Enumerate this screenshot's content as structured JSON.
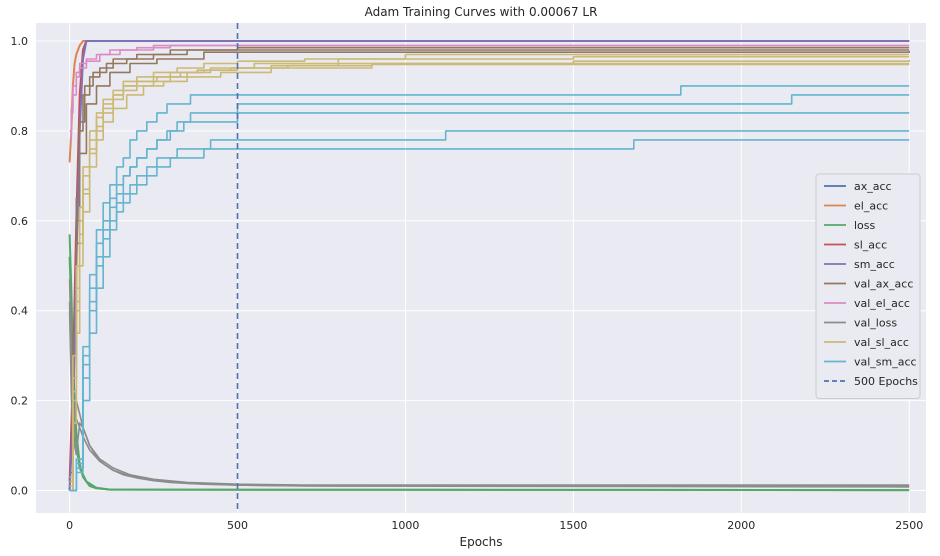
{
  "chart_data": {
    "type": "line",
    "title": "Adam Training Curves with 0.00067 LR",
    "xlabel": "Epochs",
    "ylabel": "",
    "xlim": [
      -100,
      2550
    ],
    "ylim": [
      -0.05,
      1.04
    ],
    "xticks": [
      0,
      500,
      1000,
      1500,
      2000,
      2500
    ],
    "yticks": [
      0.0,
      0.2,
      0.4,
      0.6,
      0.8,
      1.0
    ],
    "xtick_labels": [
      "0",
      "500",
      "1000",
      "1500",
      "2000",
      "2500"
    ],
    "ytick_labels": [
      "0.0",
      "0.2",
      "0.4",
      "0.6",
      "0.8",
      "1.0"
    ],
    "grid": true,
    "background": "#eaeaf2",
    "legend_position": "center right",
    "series": [
      {
        "name": "ax_acc",
        "color": "#4c72b0",
        "runs": [
          {
            "x": [
              0,
              10,
              20,
              30,
              40,
              50,
              2500
            ],
            "y": [
              0.0,
              0.2,
              0.55,
              0.85,
              0.98,
              1.0,
              1.0
            ]
          }
        ]
      },
      {
        "name": "el_acc",
        "color": "#dd8452",
        "runs": [
          {
            "x": [
              0,
              5,
              10,
              15,
              20,
              30,
              40,
              2500
            ],
            "y": [
              0.73,
              0.8,
              0.9,
              0.95,
              0.97,
              0.99,
              1.0,
              1.0
            ]
          }
        ]
      },
      {
        "name": "loss",
        "color": "#55a868",
        "runs": [
          {
            "x": [
              0,
              5,
              10,
              15,
              20,
              30,
              40,
              60,
              80,
              120,
              2500
            ],
            "y": [
              0.57,
              0.45,
              0.3,
              0.2,
              0.13,
              0.06,
              0.03,
              0.01,
              0.005,
              0.002,
              0.001
            ]
          },
          {
            "x": [
              0,
              5,
              10,
              20,
              30,
              50,
              80,
              120,
              2500
            ],
            "y": [
              0.52,
              0.4,
              0.25,
              0.1,
              0.05,
              0.02,
              0.006,
              0.002,
              0.001
            ]
          }
        ]
      },
      {
        "name": "sl_acc",
        "color": "#c44e52",
        "runs": [
          {
            "x": [
              0,
              10,
              20,
              30,
              40,
              50,
              2500
            ],
            "y": [
              0.02,
              0.25,
              0.6,
              0.88,
              0.98,
              1.0,
              1.0
            ]
          }
        ]
      },
      {
        "name": "sm_acc",
        "color": "#8172b3",
        "runs": [
          {
            "x": [
              0,
              10,
              20,
              30,
              40,
              50,
              2500
            ],
            "y": [
              0.0,
              0.15,
              0.5,
              0.8,
              0.96,
              1.0,
              1.0
            ]
          }
        ]
      },
      {
        "name": "val_ax_acc",
        "color": "#937860",
        "runs": [
          {
            "x": [
              0,
              10,
              20,
              30,
              40,
              60,
              90,
              130,
              200,
              300,
              500,
              2500
            ],
            "y": [
              0.02,
              0.3,
              0.6,
              0.8,
              0.88,
              0.92,
              0.94,
              0.96,
              0.97,
              0.98,
              0.985,
              0.985
            ]
          },
          {
            "x": [
              0,
              10,
              20,
              30,
              50,
              80,
              120,
              180,
              260,
              400,
              2500
            ],
            "y": [
              0.0,
              0.25,
              0.55,
              0.75,
              0.86,
              0.9,
              0.93,
              0.95,
              0.96,
              0.975,
              0.978
            ]
          },
          {
            "x": [
              0,
              10,
              20,
              30,
              45,
              70,
              110,
              170,
              250,
              350,
              2500
            ],
            "y": [
              0.04,
              0.35,
              0.65,
              0.82,
              0.9,
              0.93,
              0.95,
              0.96,
              0.97,
              0.98,
              0.98
            ]
          }
        ]
      },
      {
        "name": "val_el_acc",
        "color": "#da8bc3",
        "runs": [
          {
            "x": [
              0,
              5,
              10,
              20,
              30,
              50,
              80,
              120,
              200,
              300,
              2500
            ],
            "y": [
              0.8,
              0.85,
              0.9,
              0.93,
              0.95,
              0.96,
              0.97,
              0.98,
              0.985,
              0.99,
              0.99
            ]
          },
          {
            "x": [
              0,
              5,
              10,
              20,
              30,
              50,
              90,
              150,
              250,
              2500
            ],
            "y": [
              0.78,
              0.84,
              0.88,
              0.92,
              0.94,
              0.955,
              0.97,
              0.98,
              0.99,
              0.99
            ]
          }
        ]
      },
      {
        "name": "val_loss",
        "color": "#8c8c8c",
        "runs": [
          {
            "x": [
              0,
              5,
              10,
              15,
              20,
              30,
              40,
              50,
              60,
              80,
              100,
              130,
              160,
              200,
              250,
              300,
              400,
              500,
              600,
              800,
              2500
            ],
            "y": [
              0.47,
              0.3,
              0.18,
              0.1,
              0.08,
              0.15,
              0.14,
              0.12,
              0.1,
              0.075,
              0.06,
              0.045,
              0.035,
              0.028,
              0.022,
              0.018,
              0.014,
              0.012,
              0.011,
              0.01,
              0.01
            ]
          },
          {
            "x": [
              0,
              5,
              10,
              20,
              30,
              40,
              60,
              90,
              130,
              180,
              250,
              350,
              500,
              700,
              2500
            ],
            "y": [
              0.42,
              0.25,
              0.15,
              0.2,
              0.17,
              0.14,
              0.1,
              0.07,
              0.05,
              0.035,
              0.025,
              0.018,
              0.014,
              0.012,
              0.012
            ]
          },
          {
            "x": [
              0,
              5,
              10,
              20,
              30,
              40,
              60,
              90,
              130,
              180,
              250,
              350,
              500,
              700,
              2500
            ],
            "y": [
              0.4,
              0.22,
              0.12,
              0.16,
              0.14,
              0.12,
              0.09,
              0.065,
              0.045,
              0.032,
              0.022,
              0.016,
              0.012,
              0.01,
              0.008
            ]
          }
        ]
      },
      {
        "name": "val_sl_acc",
        "color": "#ccb974",
        "runs": [
          {
            "x": [
              0,
              10,
              20,
              30,
              40,
              60,
              80,
              100,
              130,
              160,
              200,
              250,
              300,
              350,
              400,
              500,
              600,
              800,
              1200,
              2500
            ],
            "y": [
              0.0,
              0.2,
              0.4,
              0.55,
              0.66,
              0.75,
              0.8,
              0.84,
              0.87,
              0.89,
              0.9,
              0.91,
              0.92,
              0.93,
              0.935,
              0.94,
              0.945,
              0.95,
              0.95,
              0.95
            ]
          },
          {
            "x": [
              0,
              10,
              20,
              30,
              40,
              60,
              80,
              100,
              130,
              160,
              200,
              260,
              330,
              420,
              550,
              800,
              1500,
              2500
            ],
            "y": [
              0.02,
              0.25,
              0.45,
              0.6,
              0.7,
              0.78,
              0.83,
              0.86,
              0.88,
              0.9,
              0.91,
              0.92,
              0.93,
              0.94,
              0.95,
              0.96,
              0.965,
              0.965
            ]
          },
          {
            "x": [
              0,
              10,
              20,
              30,
              40,
              60,
              80,
              100,
              130,
              170,
              220,
              280,
              350,
              450,
              600,
              900,
              1500,
              2500
            ],
            "y": [
              0.0,
              0.15,
              0.35,
              0.5,
              0.62,
              0.72,
              0.78,
              0.82,
              0.85,
              0.88,
              0.9,
              0.91,
              0.92,
              0.93,
              0.94,
              0.95,
              0.955,
              0.958
            ]
          },
          {
            "x": [
              0,
              10,
              20,
              30,
              40,
              60,
              80,
              100,
              130,
              160,
              200,
              250,
              320,
              400,
              500,
              700,
              1000,
              2500
            ],
            "y": [
              0.03,
              0.3,
              0.5,
              0.63,
              0.72,
              0.8,
              0.84,
              0.87,
              0.89,
              0.91,
              0.92,
              0.93,
              0.94,
              0.95,
              0.955,
              0.96,
              0.97,
              0.97
            ]
          },
          {
            "x": [
              0,
              10,
              20,
              30,
              40,
              60,
              80,
              100,
              130,
              160,
              200,
              250,
              300,
              380,
              480,
              650,
              900,
              2500
            ],
            "y": [
              0.01,
              0.22,
              0.42,
              0.57,
              0.67,
              0.76,
              0.81,
              0.85,
              0.88,
              0.9,
              0.91,
              0.92,
              0.93,
              0.935,
              0.94,
              0.945,
              0.948,
              0.948
            ]
          }
        ]
      },
      {
        "name": "val_sm_acc",
        "color": "#64b5cd",
        "runs": [
          {
            "x": [
              0,
              20,
              40,
              60,
              80,
              100,
              120,
              140,
              160,
              180,
              200,
              230,
              260,
              290,
              320,
              360,
              420,
              500,
              700,
              1000,
              1120,
              1500,
              2500
            ],
            "y": [
              0.0,
              0.05,
              0.25,
              0.4,
              0.5,
              0.56,
              0.6,
              0.64,
              0.66,
              0.68,
              0.7,
              0.72,
              0.74,
              0.74,
              0.76,
              0.76,
              0.78,
              0.78,
              0.78,
              0.78,
              0.8,
              0.8,
              0.8
            ]
          },
          {
            "x": [
              0,
              20,
              40,
              60,
              80,
              100,
              120,
              140,
              160,
              180,
              200,
              230,
              260,
              300,
              350,
              400,
              500,
              600,
              800,
              1680,
              2500
            ],
            "y": [
              0.0,
              0.04,
              0.2,
              0.35,
              0.45,
              0.52,
              0.58,
              0.62,
              0.64,
              0.66,
              0.68,
              0.7,
              0.72,
              0.74,
              0.74,
              0.76,
              0.76,
              0.76,
              0.76,
              0.78,
              0.78
            ]
          },
          {
            "x": [
              0,
              20,
              40,
              60,
              80,
              100,
              120,
              140,
              160,
              180,
              200,
              230,
              260,
              300,
              340,
              400,
              500,
              700,
              1000,
              2500
            ],
            "y": [
              0.0,
              0.06,
              0.3,
              0.45,
              0.55,
              0.6,
              0.65,
              0.68,
              0.7,
              0.72,
              0.74,
              0.76,
              0.78,
              0.8,
              0.82,
              0.82,
              0.84,
              0.84,
              0.84,
              0.84
            ]
          },
          {
            "x": [
              0,
              20,
              40,
              60,
              80,
              100,
              120,
              140,
              160,
              180,
              200,
              230,
              260,
              290,
              320,
              360,
              420,
              500,
              700,
              1000,
              2150,
              2500
            ],
            "y": [
              0.0,
              0.05,
              0.28,
              0.42,
              0.52,
              0.58,
              0.63,
              0.66,
              0.7,
              0.72,
              0.74,
              0.76,
              0.78,
              0.8,
              0.82,
              0.84,
              0.84,
              0.86,
              0.86,
              0.86,
              0.88,
              0.88
            ]
          },
          {
            "x": [
              0,
              20,
              40,
              60,
              80,
              100,
              120,
              140,
              160,
              180,
              200,
              230,
              260,
              290,
              320,
              360,
              420,
              500,
              700,
              1000,
              1820,
              2500
            ],
            "y": [
              0.0,
              0.07,
              0.32,
              0.48,
              0.58,
              0.64,
              0.68,
              0.72,
              0.74,
              0.78,
              0.8,
              0.82,
              0.84,
              0.86,
              0.86,
              0.88,
              0.88,
              0.88,
              0.88,
              0.88,
              0.9,
              0.9
            ]
          }
        ]
      }
    ],
    "vline": {
      "name": "500 Epochs",
      "x": 500,
      "color": "#4c72b0",
      "style": "dashed"
    }
  }
}
